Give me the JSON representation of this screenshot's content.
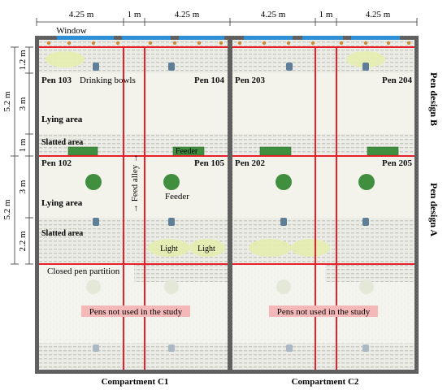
{
  "dimensions": {
    "top": [
      "4.25 m",
      "1 m",
      "4.25 m",
      "4.25 m",
      "1 m",
      "4.25 m"
    ],
    "left_outer": [
      "5.2 m",
      "5.2 m"
    ],
    "left_inner": [
      "1.2 m",
      "3 m",
      "1 m",
      "3 m",
      "2.2 m"
    ]
  },
  "labels": {
    "window": "Window",
    "drinking_bowls": "Drinking bowls",
    "lying_area_b": "Lying area",
    "slatted_area_b": "Slatted area",
    "lying_area_a": "Lying area",
    "slatted_area_a": "Slatted area",
    "feeder_b": "Feeder",
    "feeder_a": "Feeder",
    "feed_alley": "→ Feed alley →",
    "light_1": "Light",
    "light_2": "Light",
    "closed_partition": "Closed pen partition",
    "unused_c1": "Pens not used in the study",
    "unused_c2": "Pens not used in the study",
    "compartment_c1": "Compartment C1",
    "compartment_c2": "Compartment C2",
    "pen_design_b": "Pen design B",
    "pen_design_a": "Pen design A"
  },
  "pens": {
    "p103": "Pen 103",
    "p104": "Pen 104",
    "p203": "Pen 203",
    "p204": "Pen 204",
    "p102": "Pen 102",
    "p105": "Pen 105",
    "p202": "Pen 202",
    "p205": "Pen 205"
  },
  "colors": {
    "wall": "#555555",
    "partition": "#e8202a",
    "window": "#2e8fd6",
    "feeder": "#3f8f3f",
    "slat": "#d8d8d0",
    "lying": "#f3f3ec",
    "light": "#e5eeb0",
    "unused_label_bg": "#f5b8b8"
  }
}
